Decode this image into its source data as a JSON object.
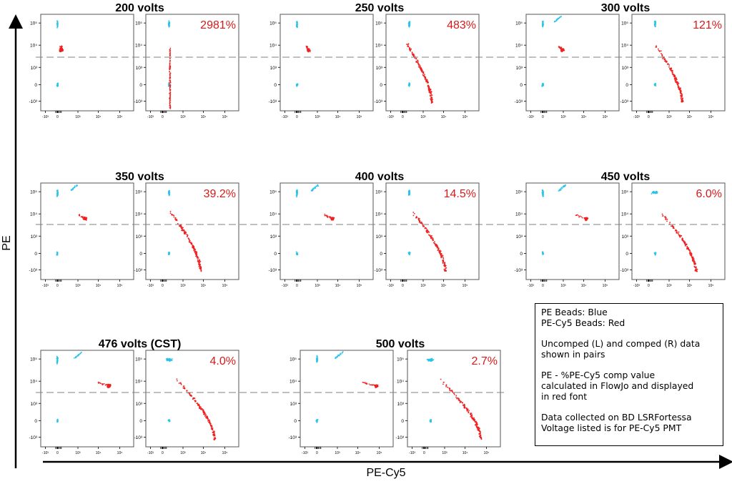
{
  "chart_data": {
    "type": "scatter",
    "xlabel": "PE-Cy5",
    "ylabel": "PE",
    "y_ticks": [
      "10⁵",
      "10⁴",
      "10³",
      "0",
      "-10³"
    ],
    "x_ticks": [
      "-10³",
      "0",
      "10³",
      "10⁴",
      "10⁵"
    ],
    "ylim": [
      "-10^3",
      "10^5"
    ],
    "y_scale": "biexponential",
    "x_scale": "biexponential",
    "series_colors": {
      "pe_beads": "#29c3e8",
      "pecy5_beads": "#f02020"
    },
    "threshold_line": {
      "style": "dashed",
      "color": "#808080"
    },
    "panels": [
      {
        "voltage": "200 volts",
        "comp_value": "2981%"
      },
      {
        "voltage": "250 volts",
        "comp_value": "483%"
      },
      {
        "voltage": "300 volts",
        "comp_value": "121%"
      },
      {
        "voltage": "350 volts",
        "comp_value": "39.2%"
      },
      {
        "voltage": "400 volts",
        "comp_value": "14.5%"
      },
      {
        "voltage": "450 volts",
        "comp_value": "6.0%"
      },
      {
        "voltage": "476 volts (CST)",
        "comp_value": "4.0%"
      },
      {
        "voltage": "500 volts",
        "comp_value": "2.7%"
      }
    ]
  },
  "legend": {
    "line1": "PE Beads: Blue",
    "line2": "PE-Cy5 Beads: Red",
    "line3": "Uncomped (L) and comped (R) data",
    "line4": "shown in pairs",
    "line5": "PE - %PE-Cy5 comp value",
    "line6": "calculated in FlowJo and displayed",
    "line7": "in red font",
    "line8": "Data collected on BD LSRFortessa",
    "line9": "Voltage listed is for PE-Cy5 PMT"
  },
  "colors": {
    "comp_text": "#d61a1a",
    "axis": "#000000"
  }
}
